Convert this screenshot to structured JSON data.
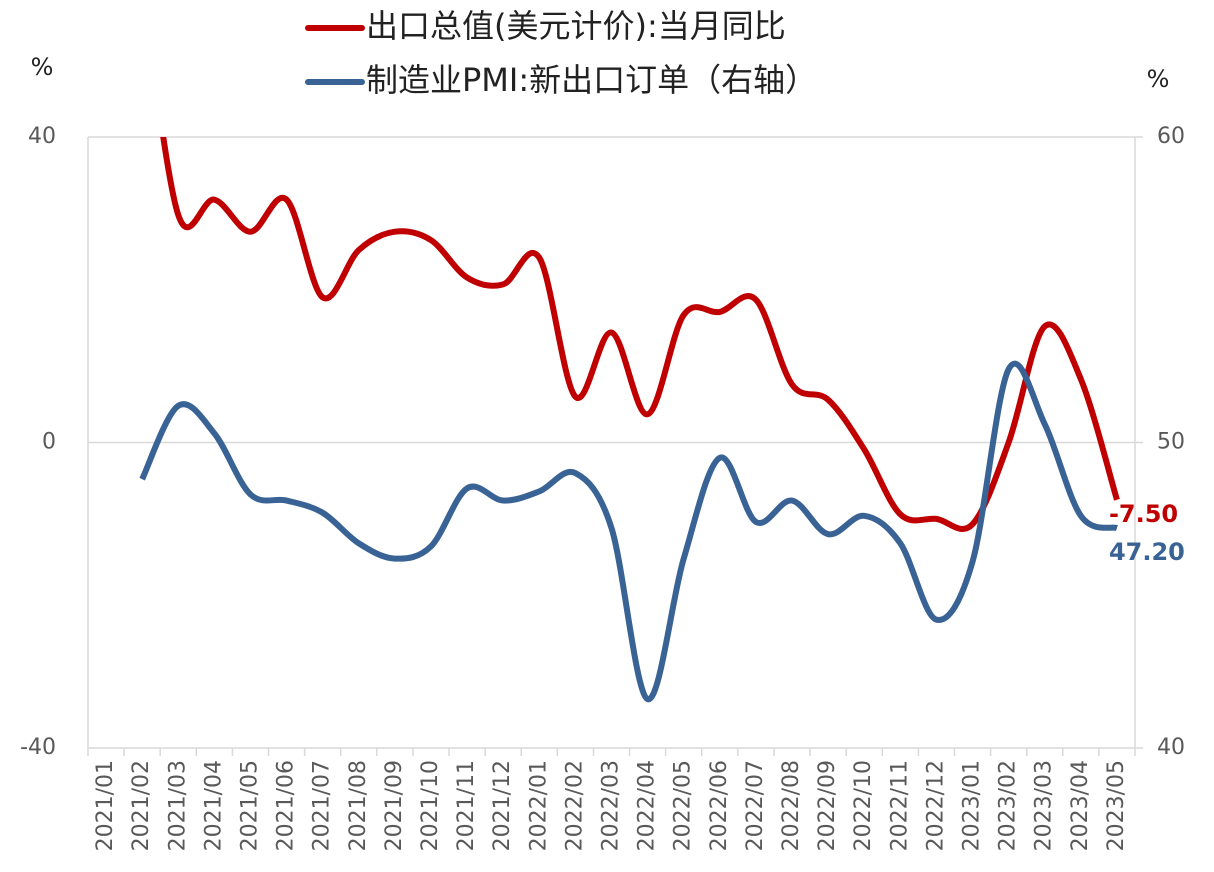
{
  "chart_data": {
    "type": "line",
    "y_label": "%",
    "y2_label": "%",
    "categories": [
      "2021/01",
      "2021/02",
      "2021/03",
      "2021/04",
      "2021/05",
      "2021/06",
      "2021/07",
      "2021/08",
      "2021/09",
      "2021/10",
      "2021/11",
      "2021/12",
      "2022/01",
      "2022/02",
      "2022/03",
      "2022/04",
      "2022/05",
      "2022/06",
      "2022/07",
      "2022/08",
      "2022/09",
      "2022/10",
      "2022/11",
      "2022/12",
      "2023/01",
      "2023/02",
      "2023/03",
      "2023/04",
      "2023/05"
    ],
    "series": [
      {
        "name": "出口总值(美元计价):当月同比",
        "color": "#c00000",
        "axis": "y",
        "values": [
          null,
          60,
          29.8,
          31.8,
          27.6,
          31.8,
          19,
          25.2,
          27.6,
          26.5,
          21.6,
          20.7,
          24.2,
          6,
          14.4,
          3.7,
          16.7,
          17.1,
          18.7,
          7.6,
          5.6,
          -0.9,
          -9.4,
          -10,
          -10.7,
          0,
          15.2,
          8.3,
          -7.5
        ],
        "value_labels": [
          null,
          null,
          null,
          null,
          null,
          null,
          null,
          null,
          null,
          null,
          null,
          null,
          null,
          null,
          null,
          null,
          null,
          null,
          null,
          null,
          null,
          null,
          null,
          null,
          null,
          null,
          null,
          null,
          "-7.50"
        ]
      },
      {
        "name": "制造业PMI:新出口订单（右轴）",
        "color": "#3a6395",
        "axis": "y2",
        "values": [
          null,
          48.8,
          51.2,
          50.3,
          48.3,
          48.1,
          47.7,
          46.7,
          46.2,
          46.6,
          48.5,
          48.1,
          48.4,
          49,
          47.2,
          41.6,
          46.2,
          49.5,
          47.4,
          48.1,
          47,
          47.6,
          46.7,
          44.2,
          46.1,
          52.4,
          50.6,
          47.6,
          47.2
        ],
        "value_labels": [
          null,
          null,
          null,
          null,
          null,
          null,
          null,
          null,
          null,
          null,
          null,
          null,
          null,
          null,
          null,
          null,
          null,
          null,
          null,
          null,
          null,
          null,
          null,
          null,
          null,
          null,
          null,
          null,
          "47.20"
        ]
      }
    ],
    "ylim": [
      -40,
      40
    ],
    "yticks": [
      -40,
      0,
      40
    ],
    "y2lim": [
      40,
      60
    ],
    "y2ticks": [
      40,
      50,
      60
    ],
    "grid": true
  }
}
